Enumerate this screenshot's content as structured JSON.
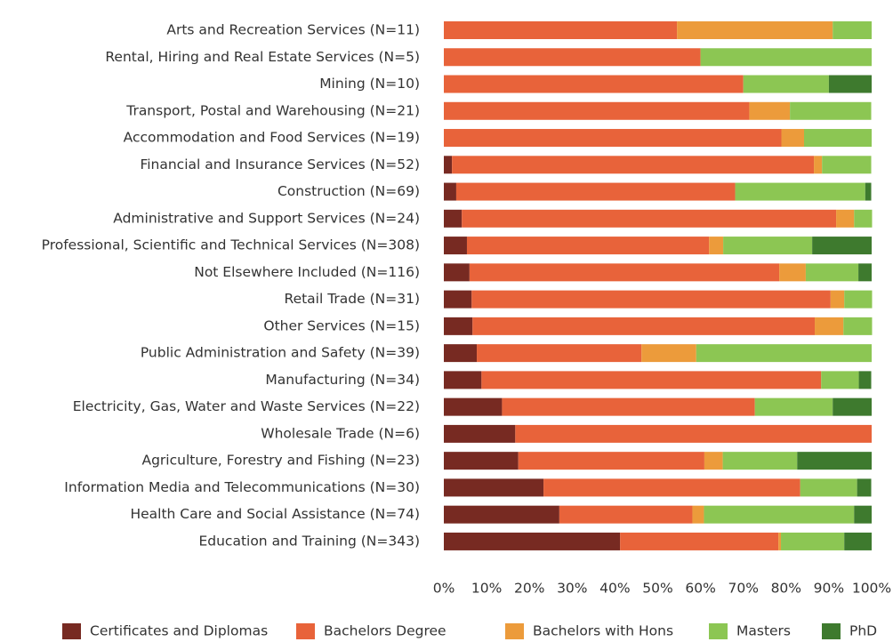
{
  "chart_data": {
    "type": "stacked-bar-horizontal",
    "categories": [
      "Arts and Recreation Services (N=11)",
      "Rental, Hiring and Real Estate Services (N=5)",
      "Mining (N=10)",
      "Transport, Postal and Warehousing (N=21)",
      "Accommodation and Food Services  (N=19)",
      "Financial and Insurance Services (N=52)",
      "Construction (N=69)",
      "Administrative and Support Services (N=24)",
      "Professional, Scientific and Technical Services (N=308)",
      "Not Elsewhere Included (N=116)",
      "Retail Trade (N=31)",
      "Other Services (N=15)",
      "Public Administration and Safety (N=39)",
      "Manufacturing (N=34)",
      "Electricity, Gas, Water and Waste Services (N=22)",
      "Wholesale Trade (N=6)",
      "Agriculture, Forestry and Fishing (N=23)",
      "Information Media and Telecommunications (N=30)",
      "Health Care and Social Assistance (N=74)",
      "Education and Training (N=343)"
    ],
    "series": [
      {
        "name": "Certificates and Diplomas",
        "color": "#772a22",
        "values": [
          0,
          0,
          0,
          0,
          0,
          1.9,
          2.9,
          4.2,
          5.4,
          6.0,
          6.5,
          6.7,
          7.7,
          8.8,
          13.6,
          16.7,
          17.4,
          23.3,
          27.0,
          41.2
        ]
      },
      {
        "name": "Bachelors Degree",
        "color": "#e8633a",
        "values": [
          54.5,
          60,
          70,
          71.4,
          78.9,
          84.6,
          65.2,
          87.5,
          56.6,
          72.4,
          83.9,
          80,
          38.5,
          79.4,
          59.1,
          83.3,
          43.5,
          60,
          31.1,
          37.0
        ]
      },
      {
        "name": "Bachelors with Hons",
        "color": "#ec9b3b",
        "values": [
          36.4,
          0,
          0,
          9.5,
          5.3,
          1.9,
          0,
          4.2,
          3.3,
          6.2,
          3.2,
          6.7,
          12.8,
          0,
          0,
          0,
          4.3,
          0,
          2.7,
          0.6
        ]
      },
      {
        "name": "Masters",
        "color": "#8cc653",
        "values": [
          9.1,
          40,
          20,
          19.0,
          15.8,
          11.5,
          30.4,
          4.2,
          20.8,
          12.3,
          6.5,
          6.7,
          41.0,
          8.8,
          18.2,
          0,
          17.4,
          13.3,
          35.1,
          14.8
        ]
      },
      {
        "name": "PhD",
        "color": "#3e7a2e",
        "values": [
          0,
          0,
          10,
          0,
          0,
          0,
          1.4,
          0,
          13.9,
          3.1,
          0,
          0,
          0,
          2.9,
          9.1,
          0,
          17.4,
          3.3,
          4.1,
          6.4
        ]
      }
    ],
    "xlim": [
      0,
      100
    ],
    "xticks": [
      {
        "value": 0,
        "label": "0%"
      },
      {
        "value": 10,
        "label": "10%"
      },
      {
        "value": 20,
        "label": "20%"
      },
      {
        "value": 30,
        "label": "30%"
      },
      {
        "value": 40,
        "label": "40%"
      },
      {
        "value": 50,
        "label": "50%"
      },
      {
        "value": 60,
        "label": "60%"
      },
      {
        "value": 70,
        "label": "70%"
      },
      {
        "value": 80,
        "label": "80%"
      },
      {
        "value": 90,
        "label": "90%"
      },
      {
        "value": 100,
        "label": "100%"
      }
    ],
    "grid": false
  }
}
